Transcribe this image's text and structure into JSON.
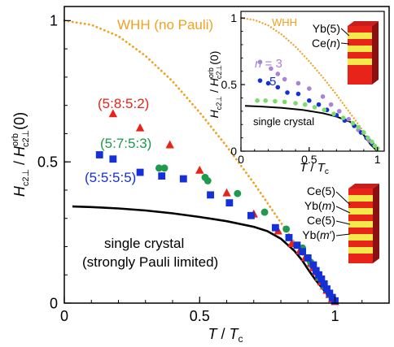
{
  "chart_data": [
    {
      "id": "main",
      "type": "scatter",
      "xlim": [
        0,
        1.2
      ],
      "ylim": [
        0,
        1.05
      ],
      "xticks": [
        {
          "value": 0,
          "label": "0"
        },
        {
          "value": 0.5,
          "label": "0.5"
        },
        {
          "value": 1,
          "label": "1"
        }
      ],
      "yticks": [
        {
          "value": 0,
          "label": "0"
        },
        {
          "value": 0.5,
          "label": "0.5"
        },
        {
          "value": 1,
          "label": "1"
        }
      ],
      "xlabel": {
        "italic": "T",
        "rest": " / ",
        "italic2": "T",
        "sub": "c"
      },
      "ylabel": {
        "main": "H",
        "sub1": "c2⊥",
        "mid": " / ",
        "main2": "H",
        "sup2": "orb",
        "sub2": "c2⊥",
        "tail": "(0)"
      },
      "grid": false,
      "colors": {
        "red": "#e8231a",
        "green": "#1e9a4c",
        "blue": "#1530d8",
        "orange": "#f2a11f",
        "black": "#000000"
      },
      "annotations": {
        "whh": "WHH (no Pauli)",
        "single_crystal_1": "single crystal",
        "single_crystal_2": "(strongly Pauli limited)",
        "label_582": "(5:8:5:2)",
        "label_573": "(5:7:5:3)",
        "label_555": "(5:5:5:5)"
      },
      "lines": [
        {
          "key": "whh",
          "style": "dotted",
          "color": "#f2a11f",
          "x": [
            0,
            0.1,
            0.2,
            0.3,
            0.4,
            0.5,
            0.6,
            0.7,
            0.8,
            0.85,
            0.9,
            0.95,
            1.0
          ],
          "y": [
            1.0,
            0.985,
            0.945,
            0.875,
            0.785,
            0.675,
            0.555,
            0.425,
            0.285,
            0.215,
            0.145,
            0.073,
            0.0
          ]
        },
        {
          "key": "single_crystal",
          "style": "solid",
          "color": "#000000",
          "x": [
            0.03,
            0.1,
            0.2,
            0.3,
            0.4,
            0.5,
            0.6,
            0.7,
            0.75,
            0.8,
            0.85,
            0.88,
            0.9,
            0.93,
            0.96,
            0.98,
            1.0
          ],
          "y": [
            0.342,
            0.34,
            0.335,
            0.328,
            0.318,
            0.305,
            0.29,
            0.27,
            0.255,
            0.228,
            0.185,
            0.15,
            0.12,
            0.08,
            0.045,
            0.02,
            0.0
          ]
        }
      ],
      "series": [
        {
          "key": "s582",
          "color": "#e8231a",
          "marker": "triangle",
          "x": [
            0.18,
            0.28,
            0.39,
            0.5,
            0.6,
            0.7,
            0.79,
            0.84,
            0.87,
            0.89,
            0.91,
            0.92,
            0.93,
            0.94,
            0.95,
            0.96,
            0.97,
            0.98,
            0.99,
            1.0
          ],
          "y": [
            0.67,
            0.62,
            0.56,
            0.47,
            0.39,
            0.315,
            0.255,
            0.21,
            0.185,
            0.16,
            0.14,
            0.125,
            0.11,
            0.09,
            0.075,
            0.06,
            0.045,
            0.03,
            0.015,
            0.005
          ]
        },
        {
          "key": "s573",
          "color": "#1e9a4c",
          "marker": "circle",
          "x": [
            0.35,
            0.37,
            0.52,
            0.53,
            0.64,
            0.74,
            0.82,
            0.88,
            0.91,
            0.94,
            0.96,
            0.98
          ],
          "y": [
            0.478,
            0.478,
            0.445,
            0.433,
            0.388,
            0.322,
            0.262,
            0.195,
            0.145,
            0.09,
            0.06,
            0.03
          ]
        },
        {
          "key": "s555",
          "color": "#1530d8",
          "marker": "square",
          "x": [
            0.13,
            0.18,
            0.28,
            0.36,
            0.44,
            0.54,
            0.61,
            0.69,
            0.78,
            0.83,
            0.86,
            0.88,
            0.9,
            0.92,
            0.93,
            0.94,
            0.95,
            0.96,
            0.97,
            0.98,
            0.99,
            1.0
          ],
          "y": [
            0.525,
            0.51,
            0.463,
            0.45,
            0.44,
            0.383,
            0.355,
            0.31,
            0.267,
            0.232,
            0.205,
            0.182,
            0.16,
            0.135,
            0.115,
            0.1,
            0.085,
            0.068,
            0.05,
            0.035,
            0.02,
            0.008
          ]
        }
      ],
      "schematic_labels": [
        "Ce(5)",
        "Yb(",
        "m",
        ")",
        "Ce(5)",
        "Yb(",
        "m",
        "′)"
      ]
    },
    {
      "id": "inset",
      "type": "scatter",
      "xlim": [
        0,
        1.05
      ],
      "ylim": [
        0,
        1.05
      ],
      "xticks": [
        {
          "value": 0,
          "label": "0"
        },
        {
          "value": 0.5,
          "label": "0.5"
        },
        {
          "value": 1,
          "label": "1"
        }
      ],
      "yticks": [
        {
          "value": 0,
          "label": "0"
        },
        {
          "value": 0.5,
          "label": "0.5"
        },
        {
          "value": 1,
          "label": "1"
        }
      ],
      "xlabel": {
        "italic": "T",
        "rest": " / ",
        "italic2": "T",
        "sub": "c"
      },
      "ylabel": {
        "main": "H",
        "sub1": "c2⊥",
        "mid": " / ",
        "main2": "H",
        "sup2": "orb",
        "sub2": "c2⊥",
        "tail": "(0)"
      },
      "annotations": {
        "whh": "WHH",
        "single_crystal": "single crystal",
        "n3": "n",
        "n3_rest": " = 3",
        "n5": "5",
        "yb5": "Yb(5)",
        "cen": "Ce(",
        "cen_n": "n",
        "cen_close": ")"
      },
      "lines": [
        {
          "key": "whh",
          "style": "dotted",
          "color": "#f2a11f",
          "x": [
            0,
            0.1,
            0.2,
            0.3,
            0.4,
            0.5,
            0.6,
            0.7,
            0.8,
            0.9,
            1.0
          ],
          "y": [
            1.0,
            0.985,
            0.945,
            0.875,
            0.785,
            0.675,
            0.555,
            0.425,
            0.285,
            0.145,
            0.0
          ]
        },
        {
          "key": "single_crystal",
          "style": "solid",
          "color": "#000000",
          "x": [
            0.03,
            0.15,
            0.3,
            0.45,
            0.6,
            0.7,
            0.8,
            0.85,
            0.9,
            0.95,
            1.0
          ],
          "y": [
            0.34,
            0.335,
            0.325,
            0.31,
            0.285,
            0.26,
            0.22,
            0.185,
            0.12,
            0.05,
            0.0
          ]
        }
      ],
      "series": [
        {
          "key": "n3",
          "color": "#a883d8",
          "marker": "circle",
          "x": [
            0.14,
            0.22,
            0.27,
            0.32,
            0.42,
            0.5,
            0.6,
            0.66,
            0.72,
            0.79,
            0.86,
            0.94
          ],
          "y": [
            0.67,
            0.62,
            0.58,
            0.54,
            0.51,
            0.47,
            0.41,
            0.35,
            0.3,
            0.24,
            0.16,
            0.08
          ]
        },
        {
          "key": "n5",
          "color": "#1530d8",
          "marker": "circle",
          "x": [
            0.14,
            0.2,
            0.27,
            0.34,
            0.42,
            0.5,
            0.57,
            0.63,
            0.7,
            0.76,
            0.83,
            0.88,
            0.92,
            0.96
          ],
          "y": [
            0.53,
            0.51,
            0.48,
            0.44,
            0.43,
            0.38,
            0.35,
            0.31,
            0.27,
            0.23,
            0.19,
            0.14,
            0.1,
            0.06
          ]
        },
        {
          "key": "n7",
          "color": "#7cdc6a",
          "marker": "circle",
          "x": [
            0.12,
            0.18,
            0.25,
            0.32,
            0.4,
            0.47,
            0.54,
            0.61,
            0.68,
            0.75,
            0.82,
            0.86,
            0.9,
            0.93,
            0.96,
            0.98,
            1.0
          ],
          "y": [
            0.38,
            0.38,
            0.375,
            0.37,
            0.36,
            0.35,
            0.33,
            0.31,
            0.28,
            0.25,
            0.21,
            0.18,
            0.14,
            0.1,
            0.07,
            0.04,
            0.02
          ]
        }
      ]
    }
  ]
}
